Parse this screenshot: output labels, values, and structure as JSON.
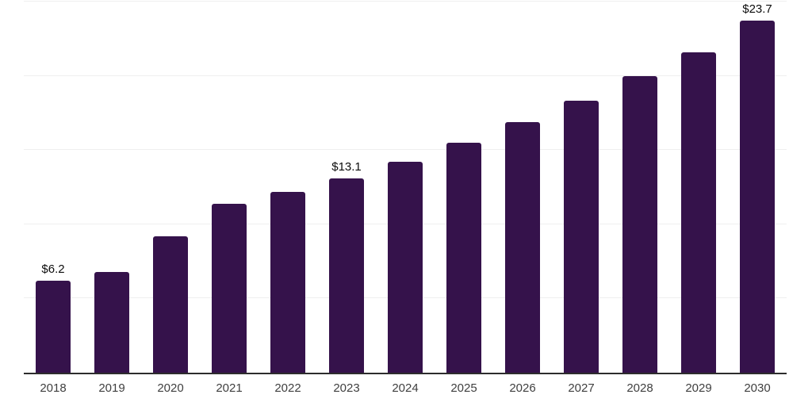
{
  "chart_data": {
    "type": "bar",
    "title": "",
    "xlabel": "",
    "ylabel": "",
    "categories": [
      "2018",
      "2019",
      "2020",
      "2021",
      "2022",
      "2023",
      "2024",
      "2025",
      "2026",
      "2027",
      "2028",
      "2029",
      "2030"
    ],
    "values": [
      6.2,
      6.8,
      9.2,
      11.4,
      12.2,
      13.1,
      14.2,
      15.5,
      16.9,
      18.3,
      20.0,
      21.6,
      23.7
    ],
    "data_labels": [
      "$6.2",
      "",
      "",
      "",
      "",
      "$13.1",
      "",
      "",
      "",
      "",
      "",
      "",
      "$23.7"
    ],
    "currency_prefix": "$",
    "ylim": [
      0,
      25
    ],
    "gridline_step": 5,
    "grid": "horizontal",
    "legend_position": "none",
    "colors": {
      "bar": "#35124B",
      "gridline": "#efefef",
      "axis_line": "#2d2d2d",
      "data_label": "#0d0d0d",
      "tick_label": "#3f3f3f",
      "background": "#ffffff"
    }
  }
}
